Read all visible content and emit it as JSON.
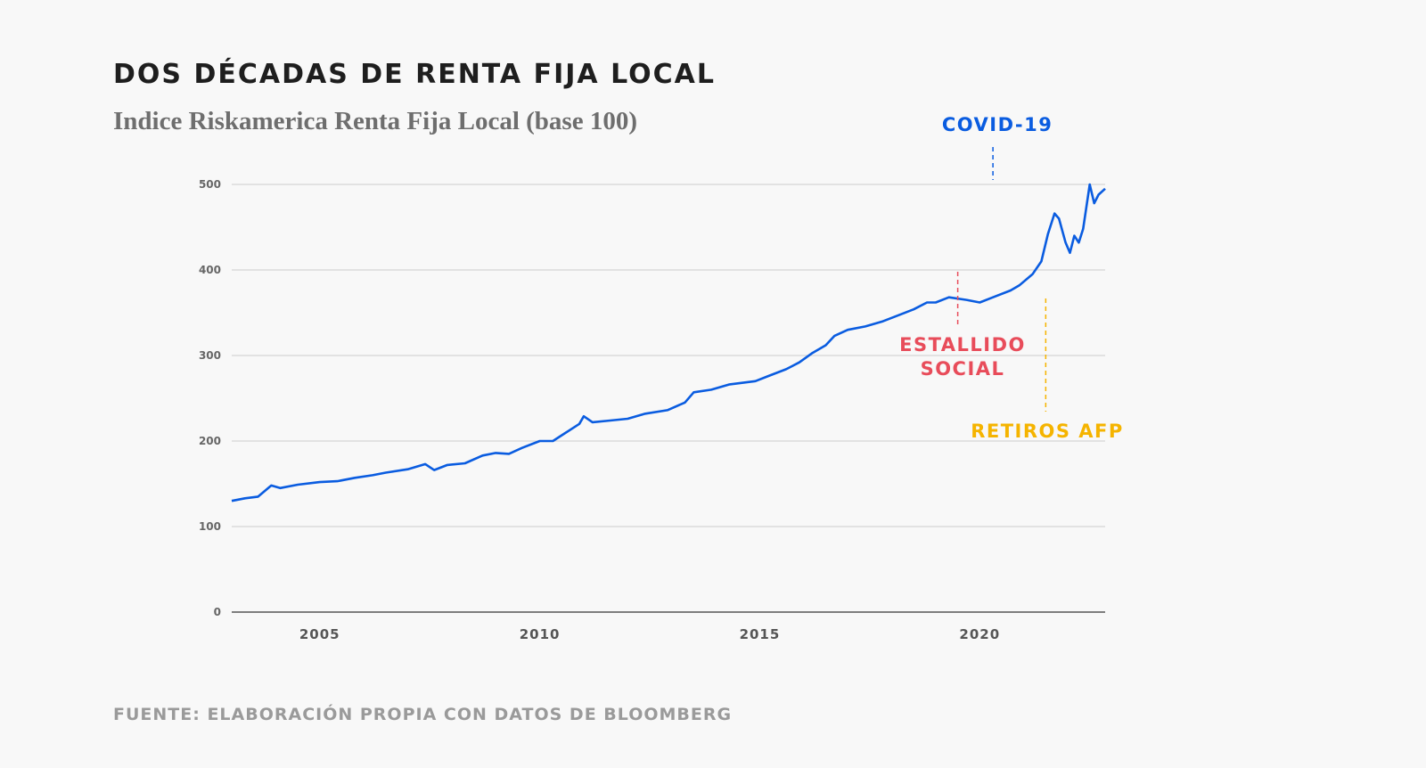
{
  "title": "DOS DÉCADAS DE RENTA FIJA LOCAL",
  "subtitle": "Indice Riskamerica Renta Fija Local (base 100)",
  "source": "FUENTE: ELABORACIÓN PROPIA CON DATOS DE BLOOMBERG",
  "chart_data": {
    "type": "line",
    "title": "DOS DÉCADAS DE RENTA FIJA LOCAL",
    "subtitle": "Indice Riskamerica Renta Fija Local (base 100)",
    "xlabel": "",
    "ylabel": "",
    "xlim": [
      2003.0,
      2022.85
    ],
    "ylim": [
      0,
      500
    ],
    "yticks": [
      0,
      100,
      200,
      300,
      400,
      500
    ],
    "xticks": [
      2005,
      2010,
      2015,
      2020
    ],
    "grid": "horizontal",
    "line_color": "#0a5ce0",
    "series": [
      {
        "points": [
          [
            2003.0,
            130
          ],
          [
            2003.3,
            133
          ],
          [
            2003.6,
            135
          ],
          [
            2003.9,
            148
          ],
          [
            2004.1,
            145
          ],
          [
            2004.5,
            149
          ],
          [
            2005.0,
            152
          ],
          [
            2005.4,
            153
          ],
          [
            2005.8,
            157
          ],
          [
            2006.2,
            160
          ],
          [
            2006.5,
            163
          ],
          [
            2007.0,
            167
          ],
          [
            2007.4,
            173
          ],
          [
            2007.6,
            166
          ],
          [
            2007.9,
            172
          ],
          [
            2008.3,
            174
          ],
          [
            2008.7,
            183
          ],
          [
            2009.0,
            186
          ],
          [
            2009.3,
            185
          ],
          [
            2009.6,
            192
          ],
          [
            2010.0,
            200
          ],
          [
            2010.3,
            200
          ],
          [
            2010.6,
            210
          ],
          [
            2010.9,
            220
          ],
          [
            2011.0,
            229
          ],
          [
            2011.2,
            222
          ],
          [
            2011.6,
            224
          ],
          [
            2012.0,
            226
          ],
          [
            2012.4,
            232
          ],
          [
            2012.9,
            236
          ],
          [
            2013.3,
            245
          ],
          [
            2013.5,
            257
          ],
          [
            2013.9,
            260
          ],
          [
            2014.3,
            266
          ],
          [
            2014.9,
            270
          ],
          [
            2015.2,
            276
          ],
          [
            2015.6,
            284
          ],
          [
            2015.9,
            292
          ],
          [
            2016.2,
            303
          ],
          [
            2016.5,
            312
          ],
          [
            2016.7,
            323
          ],
          [
            2017.0,
            330
          ],
          [
            2017.4,
            334
          ],
          [
            2017.8,
            340
          ],
          [
            2018.2,
            348
          ],
          [
            2018.5,
            354
          ],
          [
            2018.8,
            362
          ],
          [
            2019.0,
            362
          ],
          [
            2019.3,
            368
          ],
          [
            2019.7,
            365
          ],
          [
            2020.0,
            362
          ],
          [
            2020.3,
            368
          ],
          [
            2020.7,
            376
          ],
          [
            2020.9,
            382
          ],
          [
            2021.2,
            395
          ],
          [
            2021.4,
            410
          ],
          [
            2021.55,
            442
          ],
          [
            2021.7,
            466
          ],
          [
            2021.8,
            460
          ],
          [
            2021.95,
            432
          ],
          [
            2022.05,
            420
          ],
          [
            2022.15,
            440
          ],
          [
            2022.25,
            432
          ],
          [
            2022.35,
            448
          ],
          [
            2022.5,
            500
          ],
          [
            2022.6,
            478
          ],
          [
            2022.7,
            488
          ],
          [
            2022.85,
            495
          ]
        ]
      }
    ],
    "annotations": [
      {
        "label": "COVID-19",
        "x": 2020.3,
        "color": "#0a5ce0"
      },
      {
        "label_lines": [
          "ESTALLIDO",
          "SOCIAL"
        ],
        "x": 2019.5,
        "color": "#e84c5a"
      },
      {
        "label": "RETIROS AFP",
        "x": 2021.5,
        "color": "#f5b400"
      }
    ]
  }
}
